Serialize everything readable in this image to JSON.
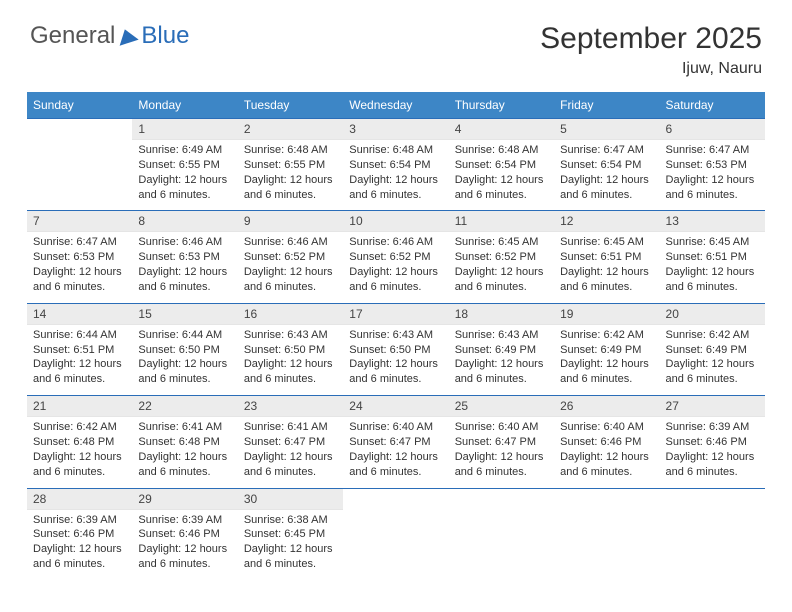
{
  "brand": {
    "part1": "General",
    "part2": "Blue"
  },
  "title": {
    "month": "September 2025",
    "location": "Ijuw, Nauru"
  },
  "colors": {
    "header_bg": "#3d86c6",
    "header_text": "#ffffff",
    "daynum_bg": "#ececec",
    "border": "#2a6db8",
    "brand_blue": "#2a6db8"
  },
  "weekdays": [
    "Sunday",
    "Monday",
    "Tuesday",
    "Wednesday",
    "Thursday",
    "Friday",
    "Saturday"
  ],
  "days": [
    {
      "n": "",
      "sunrise": "",
      "sunset": "",
      "daylight": ""
    },
    {
      "n": "1",
      "sunrise": "Sunrise: 6:49 AM",
      "sunset": "Sunset: 6:55 PM",
      "daylight": "Daylight: 12 hours and 6 minutes."
    },
    {
      "n": "2",
      "sunrise": "Sunrise: 6:48 AM",
      "sunset": "Sunset: 6:55 PM",
      "daylight": "Daylight: 12 hours and 6 minutes."
    },
    {
      "n": "3",
      "sunrise": "Sunrise: 6:48 AM",
      "sunset": "Sunset: 6:54 PM",
      "daylight": "Daylight: 12 hours and 6 minutes."
    },
    {
      "n": "4",
      "sunrise": "Sunrise: 6:48 AM",
      "sunset": "Sunset: 6:54 PM",
      "daylight": "Daylight: 12 hours and 6 minutes."
    },
    {
      "n": "5",
      "sunrise": "Sunrise: 6:47 AM",
      "sunset": "Sunset: 6:54 PM",
      "daylight": "Daylight: 12 hours and 6 minutes."
    },
    {
      "n": "6",
      "sunrise": "Sunrise: 6:47 AM",
      "sunset": "Sunset: 6:53 PM",
      "daylight": "Daylight: 12 hours and 6 minutes."
    },
    {
      "n": "7",
      "sunrise": "Sunrise: 6:47 AM",
      "sunset": "Sunset: 6:53 PM",
      "daylight": "Daylight: 12 hours and 6 minutes."
    },
    {
      "n": "8",
      "sunrise": "Sunrise: 6:46 AM",
      "sunset": "Sunset: 6:53 PM",
      "daylight": "Daylight: 12 hours and 6 minutes."
    },
    {
      "n": "9",
      "sunrise": "Sunrise: 6:46 AM",
      "sunset": "Sunset: 6:52 PM",
      "daylight": "Daylight: 12 hours and 6 minutes."
    },
    {
      "n": "10",
      "sunrise": "Sunrise: 6:46 AM",
      "sunset": "Sunset: 6:52 PM",
      "daylight": "Daylight: 12 hours and 6 minutes."
    },
    {
      "n": "11",
      "sunrise": "Sunrise: 6:45 AM",
      "sunset": "Sunset: 6:52 PM",
      "daylight": "Daylight: 12 hours and 6 minutes."
    },
    {
      "n": "12",
      "sunrise": "Sunrise: 6:45 AM",
      "sunset": "Sunset: 6:51 PM",
      "daylight": "Daylight: 12 hours and 6 minutes."
    },
    {
      "n": "13",
      "sunrise": "Sunrise: 6:45 AM",
      "sunset": "Sunset: 6:51 PM",
      "daylight": "Daylight: 12 hours and 6 minutes."
    },
    {
      "n": "14",
      "sunrise": "Sunrise: 6:44 AM",
      "sunset": "Sunset: 6:51 PM",
      "daylight": "Daylight: 12 hours and 6 minutes."
    },
    {
      "n": "15",
      "sunrise": "Sunrise: 6:44 AM",
      "sunset": "Sunset: 6:50 PM",
      "daylight": "Daylight: 12 hours and 6 minutes."
    },
    {
      "n": "16",
      "sunrise": "Sunrise: 6:43 AM",
      "sunset": "Sunset: 6:50 PM",
      "daylight": "Daylight: 12 hours and 6 minutes."
    },
    {
      "n": "17",
      "sunrise": "Sunrise: 6:43 AM",
      "sunset": "Sunset: 6:50 PM",
      "daylight": "Daylight: 12 hours and 6 minutes."
    },
    {
      "n": "18",
      "sunrise": "Sunrise: 6:43 AM",
      "sunset": "Sunset: 6:49 PM",
      "daylight": "Daylight: 12 hours and 6 minutes."
    },
    {
      "n": "19",
      "sunrise": "Sunrise: 6:42 AM",
      "sunset": "Sunset: 6:49 PM",
      "daylight": "Daylight: 12 hours and 6 minutes."
    },
    {
      "n": "20",
      "sunrise": "Sunrise: 6:42 AM",
      "sunset": "Sunset: 6:49 PM",
      "daylight": "Daylight: 12 hours and 6 minutes."
    },
    {
      "n": "21",
      "sunrise": "Sunrise: 6:42 AM",
      "sunset": "Sunset: 6:48 PM",
      "daylight": "Daylight: 12 hours and 6 minutes."
    },
    {
      "n": "22",
      "sunrise": "Sunrise: 6:41 AM",
      "sunset": "Sunset: 6:48 PM",
      "daylight": "Daylight: 12 hours and 6 minutes."
    },
    {
      "n": "23",
      "sunrise": "Sunrise: 6:41 AM",
      "sunset": "Sunset: 6:47 PM",
      "daylight": "Daylight: 12 hours and 6 minutes."
    },
    {
      "n": "24",
      "sunrise": "Sunrise: 6:40 AM",
      "sunset": "Sunset: 6:47 PM",
      "daylight": "Daylight: 12 hours and 6 minutes."
    },
    {
      "n": "25",
      "sunrise": "Sunrise: 6:40 AM",
      "sunset": "Sunset: 6:47 PM",
      "daylight": "Daylight: 12 hours and 6 minutes."
    },
    {
      "n": "26",
      "sunrise": "Sunrise: 6:40 AM",
      "sunset": "Sunset: 6:46 PM",
      "daylight": "Daylight: 12 hours and 6 minutes."
    },
    {
      "n": "27",
      "sunrise": "Sunrise: 6:39 AM",
      "sunset": "Sunset: 6:46 PM",
      "daylight": "Daylight: 12 hours and 6 minutes."
    },
    {
      "n": "28",
      "sunrise": "Sunrise: 6:39 AM",
      "sunset": "Sunset: 6:46 PM",
      "daylight": "Daylight: 12 hours and 6 minutes."
    },
    {
      "n": "29",
      "sunrise": "Sunrise: 6:39 AM",
      "sunset": "Sunset: 6:46 PM",
      "daylight": "Daylight: 12 hours and 6 minutes."
    },
    {
      "n": "30",
      "sunrise": "Sunrise: 6:38 AM",
      "sunset": "Sunset: 6:45 PM",
      "daylight": "Daylight: 12 hours and 6 minutes."
    },
    {
      "n": "",
      "sunrise": "",
      "sunset": "",
      "daylight": ""
    },
    {
      "n": "",
      "sunrise": "",
      "sunset": "",
      "daylight": ""
    },
    {
      "n": "",
      "sunrise": "",
      "sunset": "",
      "daylight": ""
    },
    {
      "n": "",
      "sunrise": "",
      "sunset": "",
      "daylight": ""
    }
  ]
}
